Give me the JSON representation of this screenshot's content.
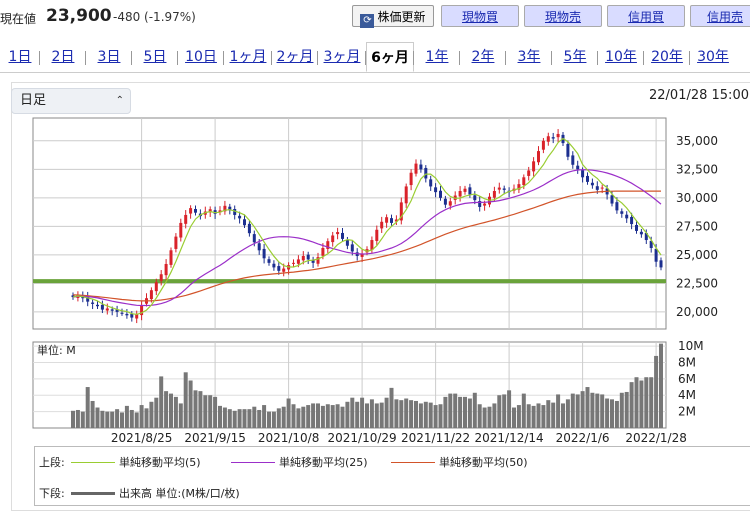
{
  "header": {
    "price_label": "現在値",
    "price": "23,900",
    "change": "-480 (-1.97%)",
    "refresh_label": "株価更新",
    "buttons": [
      "現物買",
      "現物売",
      "信用買",
      "信用売"
    ]
  },
  "tabs": [
    "1日",
    "2日",
    "3日",
    "5日",
    "10日",
    "1ヶ月",
    "2ヶ月",
    "3ヶ月",
    "6ヶ月",
    "1年",
    "2年",
    "3年",
    "5年",
    "10年",
    "20年",
    "30年"
  ],
  "active_tab": "6ヶ月",
  "controls": {
    "interval": "日足",
    "timestamp": "22/01/28 15:00"
  },
  "colors": {
    "up": "#d9222a",
    "down": "#1c2f8f",
    "ma5": "#9acd32",
    "ma25": "#9b2fc9",
    "ma50": "#d2542a",
    "support": "#6aa33a",
    "volume": "#777777"
  },
  "chart_data": [
    {
      "type": "candlestick",
      "ylim": [
        18500,
        37000
      ],
      "y_ticks": [
        "35,000",
        "32,500",
        "30,000",
        "27,500",
        "25,000",
        "22,500",
        "20,000"
      ],
      "y_tick_values": [
        35000,
        32500,
        30000,
        27500,
        25000,
        22500,
        20000
      ],
      "support_line": 22700,
      "x_labels": [
        "2021/8/25",
        "2021/9/15",
        "2021/10/8",
        "2021/10/29",
        "2021/11/22",
        "2021/12/14",
        "2022/1/6",
        "2022/1/28"
      ],
      "label_at_index": [
        14,
        29,
        44,
        59,
        74,
        89,
        104,
        119
      ],
      "close": [
        21300,
        21500,
        21200,
        20900,
        20700,
        20500,
        20200,
        20300,
        20100,
        20000,
        19900,
        19700,
        19500,
        19800,
        20600,
        21200,
        21900,
        22600,
        23300,
        24200,
        25400,
        26600,
        27800,
        28500,
        29100,
        28700,
        28400,
        28800,
        29000,
        28600,
        28900,
        29300,
        28900,
        28500,
        28200,
        27600,
        26900,
        26100,
        25400,
        24700,
        24300,
        23900,
        23600,
        23800,
        24100,
        24300,
        24600,
        24900,
        24600,
        24300,
        24800,
        25600,
        26200,
        26700,
        27000,
        26400,
        25800,
        25300,
        24900,
        25100,
        25500,
        26300,
        27200,
        27900,
        28300,
        27800,
        28100,
        29600,
        31000,
        32200,
        33000,
        32500,
        31700,
        31000,
        30500,
        30000,
        29400,
        29700,
        30200,
        30600,
        30800,
        30300,
        29800,
        29200,
        29500,
        30100,
        30600,
        30900,
        30700,
        30500,
        30800,
        31200,
        31800,
        32400,
        33200,
        34100,
        35000,
        35400,
        35200,
        35600,
        34800,
        33600,
        32900,
        32500,
        31800,
        31400,
        31100,
        30700,
        30900,
        30300,
        29500,
        28900,
        28600,
        28200,
        27700,
        27100,
        26800,
        26300,
        25600,
        24400,
        23900
      ],
      "ma5": [
        21300,
        21400,
        21333,
        21225,
        21120,
        20960,
        20700,
        20520,
        20360,
        20220,
        20100,
        20040,
        19840,
        19780,
        19920,
        20160,
        20600,
        21220,
        21920,
        22640,
        23480,
        24420,
        25460,
        26500,
        27480,
        28140,
        28500,
        28700,
        28800,
        28700,
        28740,
        28920,
        28960,
        28840,
        28700,
        28500,
        28020,
        27460,
        26800,
        26140,
        25480,
        24880,
        24380,
        24060,
        23940,
        23940,
        24080,
        24340,
        24500,
        24540,
        24640,
        24840,
        25100,
        25440,
        25900,
        26180,
        26340,
        26280,
        25880,
        25500,
        25320,
        25420,
        25800,
        26400,
        27040,
        27500,
        27860,
        28340,
        28960,
        29740,
        30780,
        31660,
        32080,
        32080,
        31740,
        31140,
        30520,
        30120,
        29960,
        29980,
        30140,
        30260,
        30340,
        30140,
        29920,
        29780,
        29840,
        30060,
        30360,
        30560,
        30700,
        30820,
        31000,
        31340,
        31820,
        32340,
        32900,
        33620,
        34180,
        34840,
        35200,
        34920,
        34420,
        33880,
        32920,
        32440,
        32030,
        31700,
        31220,
        30900,
        30340,
        29860,
        29560,
        29110,
        28550,
        27980,
        27460,
        26930,
        26310,
        25610,
        24990
      ],
      "ma25": [
        21300,
        21360,
        21370,
        21340,
        21300,
        21230,
        21130,
        21030,
        20940,
        20860,
        20780,
        20710,
        20640,
        20580,
        20560,
        20560,
        20580,
        20640,
        20730,
        20860,
        21040,
        21300,
        21620,
        22000,
        22400,
        22760,
        23050,
        23320,
        23580,
        23840,
        24080,
        24370,
        24680,
        24980,
        25260,
        25520,
        25780,
        26000,
        26180,
        26340,
        26460,
        26540,
        26580,
        26590,
        26580,
        26540,
        26480,
        26380,
        26260,
        26120,
        25960,
        25820,
        25680,
        25560,
        25440,
        25320,
        25220,
        25150,
        25100,
        25080,
        25090,
        25140,
        25220,
        25330,
        25460,
        25600,
        25780,
        26000,
        26280,
        26610,
        26980,
        27380,
        27770,
        28130,
        28450,
        28730,
        28960,
        29150,
        29300,
        29420,
        29510,
        29560,
        29590,
        29600,
        29610,
        29640,
        29690,
        29760,
        29850,
        29960,
        30080,
        30210,
        30350,
        30510,
        30690,
        30890,
        31120,
        31370,
        31620,
        31860,
        32070,
        32240,
        32360,
        32440,
        32470,
        32460,
        32420,
        32360,
        32280,
        32180,
        32050,
        31890,
        31710,
        31510,
        31280,
        31020,
        30750,
        30450,
        30140,
        29800,
        29450
      ],
      "ma50": [
        21500,
        21480,
        21450,
        21420,
        21380,
        21340,
        21290,
        21240,
        21190,
        21140,
        21090,
        21050,
        21010,
        20980,
        20960,
        20960,
        20970,
        21000,
        21040,
        21100,
        21170,
        21250,
        21340,
        21450,
        21570,
        21700,
        21840,
        21990,
        22140,
        22290,
        22430,
        22560,
        22680,
        22790,
        22890,
        22980,
        23060,
        23130,
        23190,
        23240,
        23290,
        23330,
        23370,
        23410,
        23450,
        23490,
        23540,
        23590,
        23640,
        23700,
        23770,
        23850,
        23930,
        24010,
        24090,
        24170,
        24250,
        24330,
        24410,
        24490,
        24570,
        24650,
        24740,
        24840,
        24940,
        25050,
        25170,
        25300,
        25440,
        25590,
        25750,
        25920,
        26100,
        26280,
        26460,
        26640,
        26810,
        26970,
        27120,
        27260,
        27390,
        27510,
        27620,
        27730,
        27840,
        27950,
        28060,
        28180,
        28300,
        28430,
        28560,
        28700,
        28840,
        28980,
        29120,
        29270,
        29420,
        29570,
        29720,
        29860,
        29990,
        30110,
        30210,
        30300,
        30370,
        30430,
        30480,
        30520,
        30550,
        30570,
        30580,
        30590,
        30590,
        30590,
        30590,
        30590,
        30590,
        30590,
        30590,
        30590,
        30590
      ],
      "legend_top_label": "上段:",
      "legend": [
        "単純移動平均(5)",
        "単純移動平均(25)",
        "単純移動平均(50)"
      ]
    },
    {
      "type": "bar",
      "unit_label": "単位: M",
      "ylim": [
        0,
        10.5
      ],
      "y_ticks": [
        "10M",
        "8M",
        "6M",
        "4M",
        "2M"
      ],
      "y_tick_values": [
        10,
        8,
        6,
        4,
        2
      ],
      "values": [
        2.1,
        2.2,
        2.0,
        5.0,
        3.3,
        2.5,
        2.1,
        2.0,
        2.0,
        2.3,
        1.9,
        2.7,
        2.2,
        1.9,
        2.8,
        2.4,
        3.2,
        3.7,
        6.3,
        4.5,
        4.2,
        3.8,
        3.0,
        6.8,
        5.8,
        4.6,
        4.5,
        4.0,
        4.0,
        3.8,
        2.7,
        2.5,
        2.3,
        2.1,
        2.3,
        2.3,
        2.3,
        2.6,
        2.2,
        2.8,
        2.0,
        2.0,
        2.4,
        2.6,
        3.6,
        2.9,
        2.4,
        2.6,
        2.8,
        3.0,
        3.0,
        2.7,
        2.9,
        2.8,
        2.9,
        2.6,
        3.2,
        3.7,
        3.2,
        3.7,
        3.0,
        3.5,
        3.0,
        3.1,
        3.7,
        4.9,
        3.5,
        3.4,
        3.6,
        3.4,
        3.3,
        3.0,
        3.2,
        3.1,
        2.8,
        2.9,
        3.8,
        4.2,
        4.2,
        3.8,
        3.8,
        3.6,
        4.3,
        2.9,
        2.5,
        2.6,
        3.0,
        4.0,
        4.1,
        4.6,
        2.5,
        2.8,
        4.2,
        2.9,
        2.7,
        3.0,
        2.8,
        3.4,
        3.1,
        4.1,
        3.0,
        3.5,
        4.2,
        4.1,
        4.5,
        5.0,
        4.3,
        4.2,
        4.1,
        3.6,
        3.5,
        3.3,
        4.3,
        4.4,
        5.6,
        6.2,
        5.8,
        6.2,
        6.2,
        8.8,
        10.3
      ],
      "legend_bottom_label": "下段:",
      "legend": "出来高 単位:(M株/口/枚)"
    }
  ]
}
